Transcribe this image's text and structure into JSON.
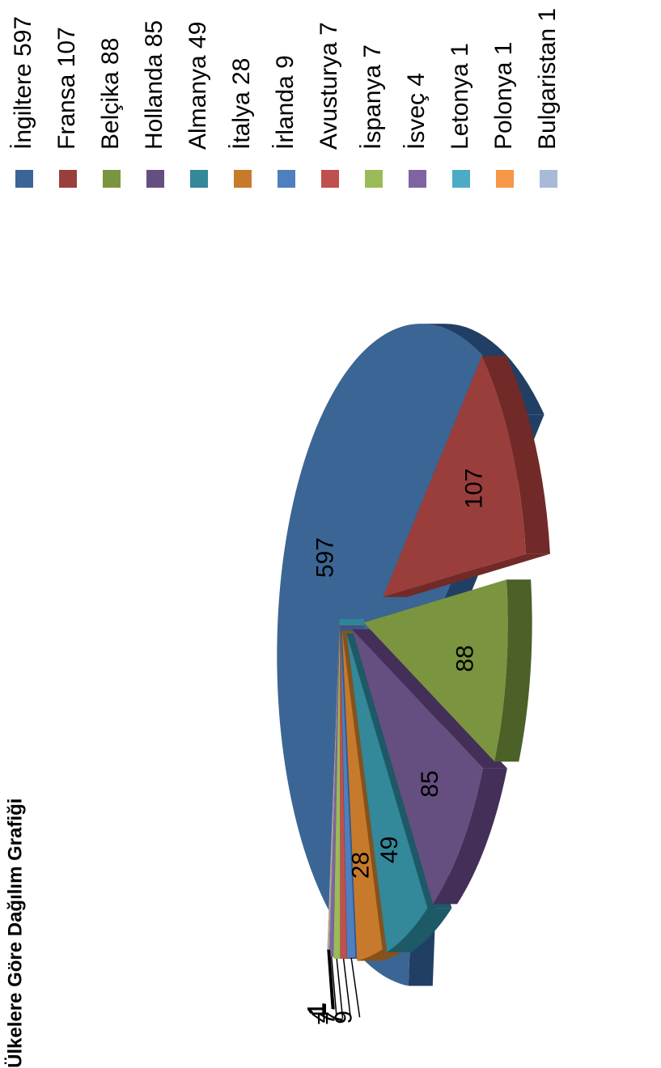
{
  "chart_data": {
    "type": "pie",
    "title": "Ülkelere Göre Dağılım Grafiği",
    "categories": [
      "İngiltere",
      "Fransa",
      "Belçika",
      "Hollanda",
      "Almanya",
      "İtalya",
      "İrlanda",
      "Avusturya",
      "İspanya",
      "İsveç",
      "Letonya",
      "Polonya",
      "Bulgaristan"
    ],
    "values": [
      597,
      107,
      88,
      85,
      49,
      28,
      9,
      7,
      7,
      4,
      1,
      1,
      1
    ],
    "legend_labels": [
      "İngiltere 597",
      "Fransa 107",
      "Belçika 88",
      "Hollanda 85",
      "Almanya 49",
      "İtalya 28",
      "İrlanda 9",
      "Avusturya 7",
      "İspanya 7",
      "İsveç 4",
      "Letonya 1",
      "Polonya 1",
      "Bulgaristan 1"
    ],
    "data_labels": [
      "597",
      "107",
      "88",
      "85",
      "49",
      "28",
      "9",
      "7",
      "7",
      "4",
      "1",
      "1",
      "1"
    ],
    "colors": [
      "#3b6594",
      "#9a3e3b",
      "#7b943f",
      "#654f80",
      "#33889a",
      "#c77a2c",
      "#4e7fbe",
      "#c0504d",
      "#9bbb59",
      "#8064a2",
      "#4bacc6",
      "#f79646",
      "#a9b9d8"
    ],
    "side_colors": [
      "#213f64",
      "#712a27",
      "#4b6128",
      "#432f58",
      "#1d5966",
      "#85521b",
      "#325c8f",
      "#8c3331",
      "#6b8a35",
      "#5a4576",
      "#2e8599",
      "#b8691e",
      "#7889b0"
    ],
    "legend_position": "right",
    "orientation": "rotated 90° counter-clockwise",
    "style": "3D exploded pie"
  }
}
